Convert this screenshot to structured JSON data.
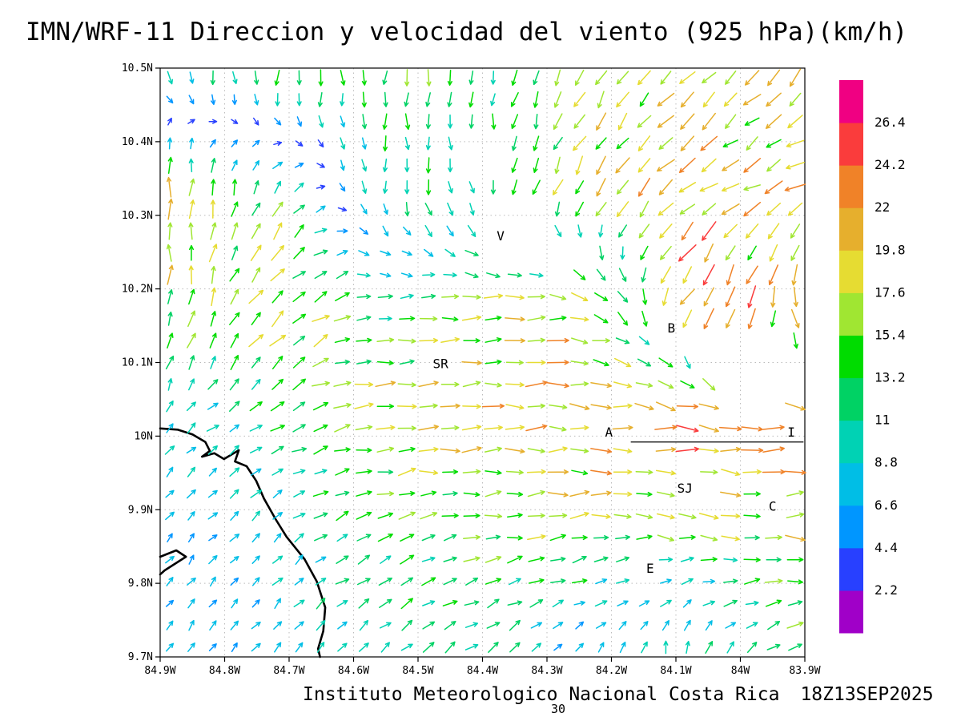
{
  "title": "IMN/WRF-11 Direccion y velocidad del viento (925 hPa)(km/h)",
  "footer": {
    "institute": "Instituto Meteorologico Nacional Costa Rica",
    "datetime": "18Z13SEP2025",
    "frame_number": "30"
  },
  "chart_data": {
    "type": "vector-field",
    "unit": "km/h",
    "level": "925 hPa",
    "x_tick_labels": [
      "84.9W",
      "84.8W",
      "84.7W",
      "84.6W",
      "84.5W",
      "84.4W",
      "84.3W",
      "84.2W",
      "84.1W",
      "84W",
      "83.9W"
    ],
    "y_tick_labels": [
      "10.5N",
      "10.4N",
      "10.3N",
      "10.2N",
      "10.1N",
      "10N",
      "9.9N",
      "9.8N",
      "9.7N"
    ],
    "lon_range_w": [
      84.9,
      83.9
    ],
    "lat_range_n": [
      9.7,
      10.5
    ],
    "grid_dotted": true,
    "colorbar": {
      "levels": [
        2.2,
        4.4,
        6.6,
        8.8,
        11,
        13.2,
        15.4,
        17.6,
        19.8,
        22,
        24.2,
        26.4
      ],
      "colors": [
        "#a000c8",
        "#2840ff",
        "#0096ff",
        "#00bee6",
        "#00d2b4",
        "#00d264",
        "#00dc00",
        "#a0e632",
        "#e6dc32",
        "#e6af2d",
        "#f08228",
        "#fa3c3c",
        "#f00082"
      ]
    },
    "stations": [
      {
        "label": "V",
        "fx": 0.528,
        "fy": 0.286
      },
      {
        "label": "B",
        "fx": 0.793,
        "fy": 0.442
      },
      {
        "label": "SR",
        "fx": 0.435,
        "fy": 0.503
      },
      {
        "label": "A",
        "fx": 0.696,
        "fy": 0.619
      },
      {
        "label": "I",
        "fx": 0.979,
        "fy": 0.619
      },
      {
        "label": "SJ",
        "fx": 0.814,
        "fy": 0.714
      },
      {
        "label": "C",
        "fx": 0.95,
        "fy": 0.745
      },
      {
        "label": "E",
        "fx": 0.76,
        "fy": 0.85
      }
    ],
    "terrain_masks": [
      [
        0.5,
        0.15,
        22
      ],
      [
        0.556,
        0.268,
        48
      ],
      [
        0.621,
        0.32,
        30
      ],
      [
        0.932,
        0.524,
        55
      ],
      [
        0.851,
        0.476,
        30
      ],
      [
        0.745,
        0.633,
        22
      ],
      [
        0.975,
        0.635,
        18
      ],
      [
        0.832,
        0.711,
        22
      ],
      [
        0.947,
        0.741,
        18
      ]
    ],
    "coastline_polylines": [
      [
        [
          0.0,
          0.612
        ],
        [
          0.027,
          0.614
        ],
        [
          0.05,
          0.622
        ],
        [
          0.07,
          0.635
        ],
        [
          0.077,
          0.65
        ],
        [
          0.065,
          0.66
        ],
        [
          0.084,
          0.654
        ],
        [
          0.099,
          0.664
        ],
        [
          0.122,
          0.649
        ],
        [
          0.116,
          0.668
        ],
        [
          0.134,
          0.676
        ],
        [
          0.149,
          0.701
        ],
        [
          0.161,
          0.731
        ],
        [
          0.179,
          0.766
        ],
        [
          0.196,
          0.796
        ],
        [
          0.224,
          0.834
        ],
        [
          0.243,
          0.872
        ],
        [
          0.256,
          0.916
        ],
        [
          0.253,
          0.956
        ],
        [
          0.245,
          0.986
        ],
        [
          0.248,
          1.0
        ]
      ],
      [
        [
          0.0,
          0.83
        ],
        [
          0.025,
          0.819
        ],
        [
          0.04,
          0.83
        ],
        [
          0.007,
          0.853
        ],
        [
          0.0,
          0.86
        ]
      ]
    ],
    "boundary_line": [
      [
        0.73,
        0.635
      ],
      [
        0.998,
        0.635
      ]
    ],
    "wind_field_sample": {
      "cols_u": [
        0,
        0.167,
        0.333,
        0.5,
        0.667,
        0.833,
        1
      ],
      "rows_v": [
        0,
        0.2,
        0.4,
        0.6,
        0.8,
        1
      ],
      "dir_deg": [
        [
          -70,
          -90,
          -90,
          -95,
          -120,
          -130,
          -135
        ],
        [
          90,
          60,
          -90,
          -80,
          -120,
          -140,
          -160
        ],
        [
          90,
          45,
          10,
          5,
          -10,
          -120,
          -90
        ],
        [
          45,
          30,
          5,
          0,
          0,
          -5,
          0
        ],
        [
          50,
          45,
          20,
          10,
          5,
          -10,
          0
        ],
        [
          55,
          50,
          45,
          35,
          60,
          80,
          20
        ]
      ],
      "speed_kmh": [
        [
          9,
          13,
          13,
          12,
          15,
          18,
          17
        ],
        [
          20,
          14,
          11,
          11,
          17,
          20,
          19
        ],
        [
          15,
          19,
          11,
          16,
          19,
          24,
          21
        ],
        [
          9,
          11,
          19,
          20,
          20,
          23,
          21
        ],
        [
          6,
          8,
          13,
          14,
          16,
          14,
          18
        ],
        [
          6,
          8,
          10,
          12,
          6,
          10,
          12
        ]
      ]
    },
    "arrow_grid": {
      "nx": 30,
      "ny": 27
    }
  }
}
